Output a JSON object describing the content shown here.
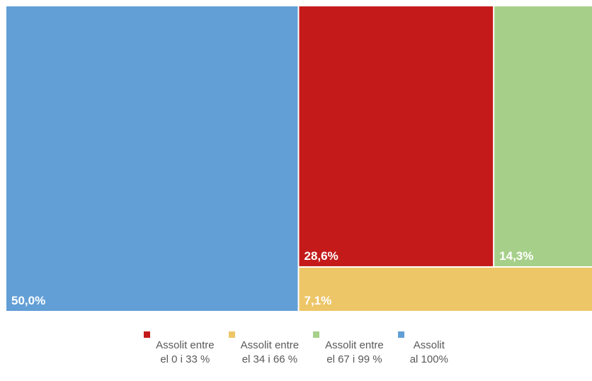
{
  "chart_data": {
    "type": "treemap",
    "title": "",
    "categories": [
      "Assolit entre el 0 i 33 %",
      "Assolit entre el 34 i 66 %",
      "Assolit entre el 67 i 99 %",
      "Assolit al 100%"
    ],
    "values": [
      28.6,
      7.1,
      14.3,
      50.0
    ],
    "data_labels": [
      "28,6%",
      "7,1%",
      "14,3%",
      "50,0%"
    ],
    "colors": [
      "#c41a1a",
      "#edc668",
      "#a6d08a",
      "#629fd6"
    ],
    "legend": {
      "position": "bottom",
      "entries": [
        {
          "line1": "Assolit entre",
          "line2": "el 0 i 33 %"
        },
        {
          "line1": "Assolit entre",
          "line2": "el 34 i 66 %"
        },
        {
          "line1": "Assolit entre",
          "line2": "el 67 i 99 %"
        },
        {
          "line1": "Assolit",
          "line2": "al 100%"
        }
      ]
    }
  }
}
